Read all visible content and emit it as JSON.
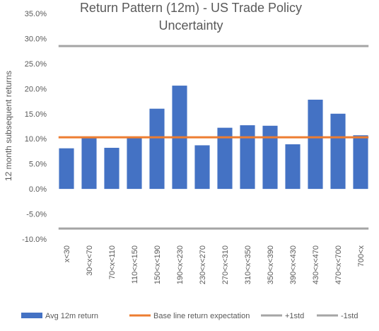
{
  "chart_data": {
    "type": "bar",
    "title_lines": [
      "Return Pattern (12m) - US Trade Policy",
      "Uncertainty"
    ],
    "ylabel": "12 month subsequent returns",
    "xlabel": "",
    "ylim": [
      -0.1,
      0.35
    ],
    "yticks": [
      -0.1,
      -0.05,
      0.0,
      0.05,
      0.1,
      0.15,
      0.2,
      0.25,
      0.3,
      0.35
    ],
    "ytick_labels": [
      "-10.0%",
      "-5.0%",
      "0.0%",
      "5.0%",
      "10.0%",
      "15.0%",
      "20.0%",
      "25.0%",
      "30.0%",
      "35.0%"
    ],
    "grid": false,
    "legend_position": "bottom",
    "categories": [
      "x<30",
      "30<x<70",
      "70<x<110",
      "110<x<150",
      "150<x<190",
      "190<x<230",
      "230<x<270",
      "270<x<310",
      "310<x<350",
      "350<x<390",
      "390<x<430",
      "430<x<470",
      "470<x<700",
      "700<x"
    ],
    "series": [
      {
        "name": "Avg 12m return",
        "type": "bar",
        "color": "#4472c4",
        "values": [
          0.081,
          0.101,
          0.082,
          0.102,
          0.16,
          0.206,
          0.087,
          0.122,
          0.127,
          0.126,
          0.089,
          0.178,
          0.15,
          0.107
        ]
      },
      {
        "name": "Base line return expectation",
        "type": "line",
        "color": "#ed7d31",
        "value": 0.103
      },
      {
        "name": "+1std",
        "type": "line",
        "color": "#a5a5a5",
        "value": 0.285
      },
      {
        "name": "-1std",
        "type": "line",
        "color": "#a5a5a5",
        "value": -0.079
      }
    ]
  }
}
